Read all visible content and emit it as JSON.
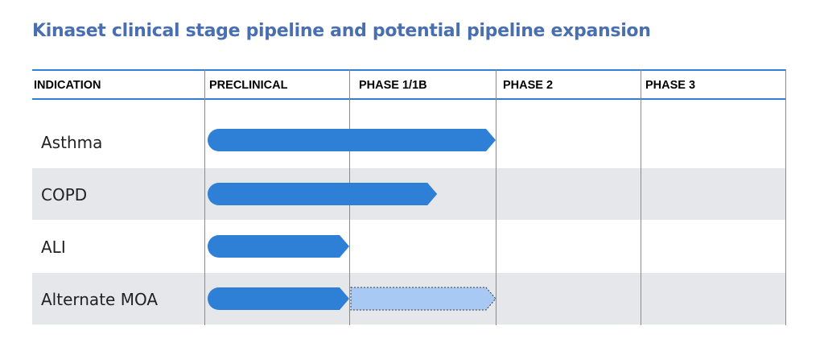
{
  "title": "Kinaset clinical stage pipeline and potential pipeline expansion",
  "columns": [
    "INDICATION",
    "PRECLINICAL",
    "PHASE 1/1B",
    "PHASE 2",
    "PHASE 3"
  ],
  "rows": [
    {
      "label": "Asthma",
      "bars": [
        {
          "progress": 2.0,
          "style": "solid"
        }
      ]
    },
    {
      "label": "COPD",
      "bars": [
        {
          "progress": 1.6,
          "style": "solid"
        }
      ]
    },
    {
      "label": "ALI",
      "bars": [
        {
          "progress": 1.0,
          "style": "solid"
        }
      ]
    },
    {
      "label": "Alternate MOA",
      "bars": [
        {
          "progress": 1.0,
          "style": "solid"
        },
        {
          "progress_from": 1.0,
          "progress": 2.0,
          "style": "planned"
        }
      ]
    }
  ],
  "colors": {
    "title": "#4a6fb0",
    "rule": "#2f7fd4",
    "bar": "#2e7fd6",
    "planned_bar": "#a9c9f5",
    "row_shade": "#e6e7eb"
  }
}
